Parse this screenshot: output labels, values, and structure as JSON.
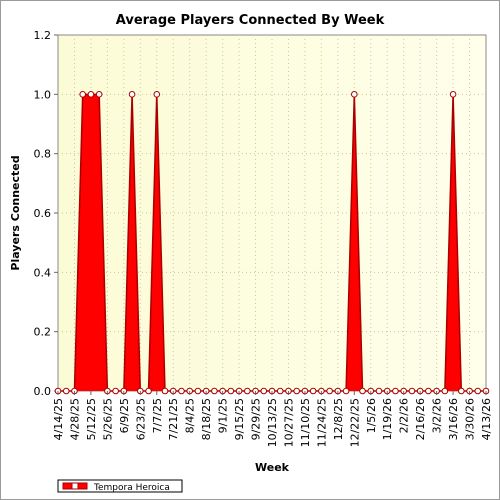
{
  "chart_data": {
    "type": "area",
    "title": "Average Players Connected By Week",
    "xlabel": "Week",
    "ylabel": "Players Connected",
    "ylim": [
      0,
      1.2
    ],
    "yticks": [
      "0.0",
      "0.2",
      "0.4",
      "0.6",
      "0.8",
      "1.0",
      "1.2"
    ],
    "grid": true,
    "legend_position": "bottom-left",
    "colors": {
      "series_fill": "#ff0000",
      "series_line": "#aa0000",
      "plot_bg_left": "#fbfbd9",
      "plot_bg_right": "#ffffe8",
      "grid": "#c8c8a0"
    },
    "x_tick_labels": [
      "4/14/25",
      "4/28/25",
      "5/12/25",
      "5/26/25",
      "6/9/25",
      "6/23/25",
      "7/7/25",
      "7/21/25",
      "8/4/25",
      "8/18/25",
      "9/1/25",
      "9/15/25",
      "9/29/25",
      "10/13/25",
      "10/27/25",
      "11/10/25",
      "11/24/25",
      "12/8/25",
      "12/22/25",
      "1/5/26",
      "1/19/26",
      "2/2/26",
      "2/16/26",
      "3/2/26",
      "3/16/26",
      "3/30/26",
      "4/13/26"
    ],
    "x": [
      "4/14/25",
      "4/21/25",
      "4/28/25",
      "5/5/25",
      "5/12/25",
      "5/19/25",
      "5/26/25",
      "6/2/25",
      "6/9/25",
      "6/16/25",
      "6/23/25",
      "6/30/25",
      "7/7/25",
      "7/14/25",
      "7/21/25",
      "7/28/25",
      "8/4/25",
      "8/11/25",
      "8/18/25",
      "8/25/25",
      "9/1/25",
      "9/8/25",
      "9/15/25",
      "9/22/25",
      "9/29/25",
      "10/6/25",
      "10/13/25",
      "10/20/25",
      "10/27/25",
      "11/3/25",
      "11/10/25",
      "11/17/25",
      "11/24/25",
      "12/1/25",
      "12/8/25",
      "12/15/25",
      "12/22/25",
      "12/29/25",
      "1/5/26",
      "1/12/26",
      "1/19/26",
      "1/26/26",
      "2/2/26",
      "2/9/26",
      "2/16/26",
      "2/23/26",
      "3/2/26",
      "3/9/26",
      "3/16/26",
      "3/23/26",
      "3/30/26",
      "4/6/26",
      "4/13/26"
    ],
    "series": [
      {
        "name": "Tempora Heroica",
        "values": [
          0,
          0,
          0,
          1,
          1,
          1,
          0,
          0,
          0,
          1,
          0,
          0,
          1,
          0,
          0,
          0,
          0,
          0,
          0,
          0,
          0,
          0,
          0,
          0,
          0,
          0,
          0,
          0,
          0,
          0,
          0,
          0,
          0,
          0,
          0,
          0,
          1,
          0,
          0,
          0,
          0,
          0,
          0,
          0,
          0,
          0,
          0,
          0,
          1,
          0,
          0,
          0,
          0
        ]
      }
    ]
  }
}
